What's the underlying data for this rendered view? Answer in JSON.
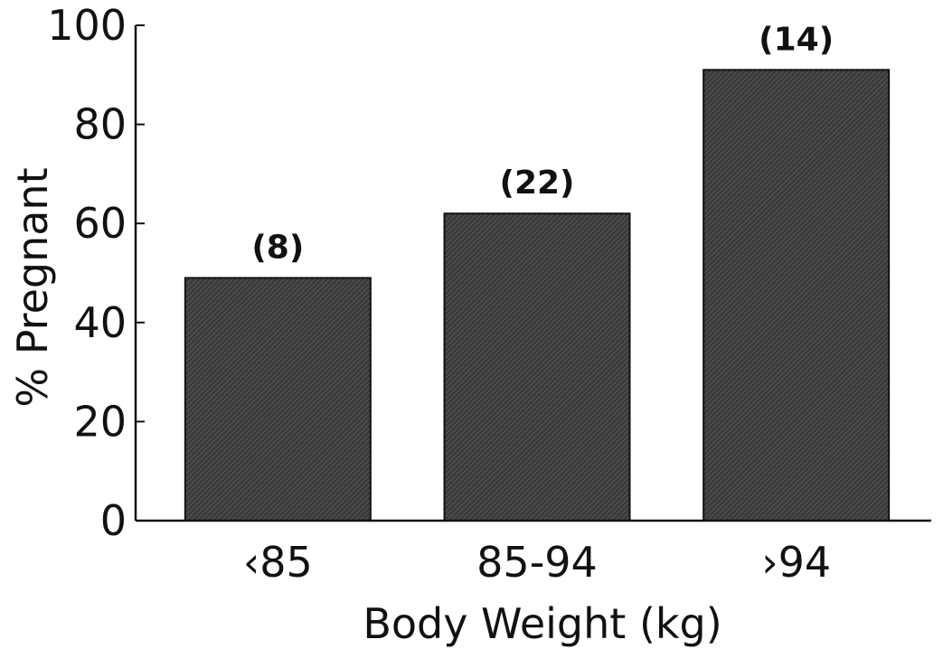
{
  "chart_data": {
    "type": "bar",
    "categories": [
      "‹85",
      "85-94",
      "›94"
    ],
    "values": [
      49,
      62,
      91
    ],
    "data_labels": [
      "(8)",
      "(22)",
      "(14)"
    ],
    "xlabel": "Body Weight (kg)",
    "ylabel": "% Pregnant",
    "ylim": [
      0,
      100
    ],
    "yticks": [
      "0",
      "20",
      "40",
      "60",
      "80",
      "100"
    ],
    "grid": false,
    "bar_color": "#3a3a3a"
  }
}
